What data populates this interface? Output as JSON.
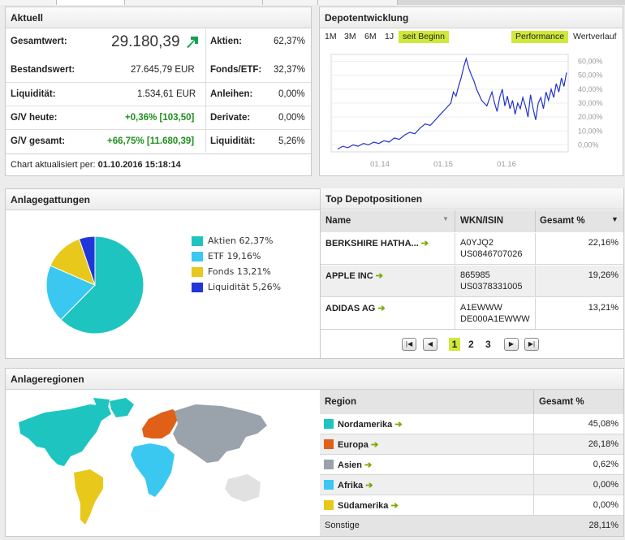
{
  "aktuell": {
    "title": "Aktuell",
    "gesamtwert_label": "Gesamtwert:",
    "gesamtwert_value": "29.180,39",
    "bestandswert_label": "Bestandswert:",
    "bestandswert_value": "27.645,79 EUR",
    "liquiditaet_label": "Liquidität:",
    "liquiditaet_value": "1.534,61 EUR",
    "gv_heute_label": "G/V heute:",
    "gv_heute_value": "+0,36% [103,50]",
    "gv_gesamt_label": "G/V gesamt:",
    "gv_gesamt_value": "+66,75% [11.680,39]",
    "alloc": [
      {
        "label": "Aktien:",
        "value": "62,37%"
      },
      {
        "label": "Fonds/ETF:",
        "value": "32,37%"
      },
      {
        "label": "Anleihen:",
        "value": "0,00%"
      },
      {
        "label": "Derivate:",
        "value": "0,00%"
      },
      {
        "label": "Liquidität:",
        "value": "5,26%"
      }
    ],
    "chart_updated_label": "Chart aktualisiert per:",
    "chart_updated_value": "01.10.2016 15:18:14"
  },
  "depot": {
    "title": "Depotentwicklung",
    "ranges": [
      "1M",
      "3M",
      "6M",
      "1J",
      "seit Beginn"
    ],
    "active_range": "seit Beginn",
    "mode_performance": "Performance",
    "mode_wertverlauf": "Wertverlauf"
  },
  "chart_data": {
    "type": "line",
    "title": "",
    "x_ticks": [
      "01.14",
      "01.15",
      "01.16"
    ],
    "y_ticks": [
      "60,00%",
      "50,00%",
      "40,00%",
      "30,00%",
      "20,00%",
      "10,00%",
      "0,00%"
    ],
    "ylim": [
      -5,
      65
    ],
    "xlabel": "",
    "ylabel": "",
    "color": "#2233cc",
    "series": [
      {
        "values": [
          [
            0,
            -3
          ],
          [
            4,
            -1
          ],
          [
            8,
            -2
          ],
          [
            12,
            0
          ],
          [
            16,
            -1
          ],
          [
            20,
            1
          ],
          [
            24,
            0
          ],
          [
            28,
            2
          ],
          [
            32,
            1
          ],
          [
            36,
            3
          ],
          [
            40,
            2
          ],
          [
            44,
            5
          ],
          [
            48,
            4
          ],
          [
            52,
            7
          ],
          [
            56,
            9
          ],
          [
            60,
            8
          ],
          [
            64,
            12
          ],
          [
            68,
            15
          ],
          [
            72,
            14
          ],
          [
            76,
            18
          ],
          [
            80,
            22
          ],
          [
            84,
            26
          ],
          [
            88,
            30
          ],
          [
            90,
            38
          ],
          [
            92,
            35
          ],
          [
            94,
            42
          ],
          [
            96,
            48
          ],
          [
            98,
            56
          ],
          [
            100,
            62
          ],
          [
            102,
            55
          ],
          [
            104,
            50
          ],
          [
            106,
            46
          ],
          [
            108,
            40
          ],
          [
            110,
            36
          ],
          [
            112,
            32
          ],
          [
            114,
            30
          ],
          [
            116,
            28
          ],
          [
            118,
            33
          ],
          [
            120,
            38
          ],
          [
            122,
            30
          ],
          [
            124,
            24
          ],
          [
            126,
            34
          ],
          [
            128,
            40
          ],
          [
            130,
            28
          ],
          [
            132,
            35
          ],
          [
            134,
            26
          ],
          [
            136,
            32
          ],
          [
            138,
            22
          ],
          [
            140,
            30
          ],
          [
            142,
            26
          ],
          [
            144,
            34
          ],
          [
            146,
            28
          ],
          [
            148,
            20
          ],
          [
            150,
            36
          ],
          [
            152,
            26
          ],
          [
            154,
            18
          ],
          [
            156,
            30
          ],
          [
            158,
            34
          ],
          [
            160,
            26
          ],
          [
            162,
            38
          ],
          [
            164,
            32
          ],
          [
            166,
            40
          ],
          [
            168,
            34
          ],
          [
            170,
            44
          ],
          [
            172,
            38
          ],
          [
            174,
            48
          ],
          [
            176,
            42
          ],
          [
            178,
            52
          ]
        ]
      }
    ]
  },
  "anlagegattungen": {
    "title": "Anlagegattungen",
    "legend": [
      {
        "label": "Aktien 62,37%",
        "color": "#1ec5c0"
      },
      {
        "label": "ETF 19,16%",
        "color": "#3ac8f0"
      },
      {
        "label": "Fonds 13,21%",
        "color": "#e8c81a"
      },
      {
        "label": "Liquidität 5,26%",
        "color": "#2136d8"
      }
    ],
    "pie_values": [
      62.37,
      19.16,
      13.21,
      5.26
    ]
  },
  "top_positions": {
    "title": "Top Depotpositionen",
    "columns": [
      "Name",
      "WKN/ISIN",
      "Gesamt %"
    ],
    "rows": [
      {
        "name": "BERKSHIRE HATHA...",
        "wkn": "A0YJQ2",
        "isin": "US0846707026",
        "pct": "22,16%"
      },
      {
        "name": "APPLE INC",
        "wkn": "865985",
        "isin": "US0378331005",
        "pct": "19,26%"
      },
      {
        "name": "ADIDAS AG",
        "wkn": "A1EWWW",
        "isin": "DE000A1EWWW",
        "pct": "13,21%"
      }
    ],
    "pages": [
      "1",
      "2",
      "3"
    ],
    "current_page": "1"
  },
  "anlageregionen": {
    "title": "Anlageregionen",
    "columns": [
      "Region",
      "Gesamt %"
    ],
    "rows": [
      {
        "name": "Nordamerika",
        "pct": "45,08%",
        "color": "#1ec5c0"
      },
      {
        "name": "Europa",
        "pct": "26,18%",
        "color": "#e06018"
      },
      {
        "name": "Asien",
        "pct": "0,62%",
        "color": "#9aa2ab"
      },
      {
        "name": "Afrika",
        "pct": "0,00%",
        "color": "#3ac8f0"
      },
      {
        "name": "Südamerika",
        "pct": "0,00%",
        "color": "#e8c81a"
      }
    ],
    "sonstige_label": "Sonstige",
    "sonstige_value": "28,11%"
  },
  "icons": {
    "up": "arrow-up-right-icon",
    "link": "arrow-right-icon"
  }
}
